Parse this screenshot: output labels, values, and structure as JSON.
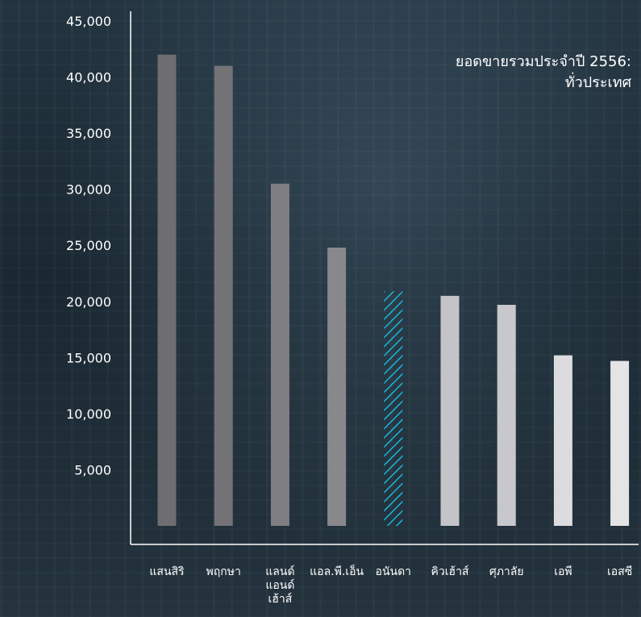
{
  "chart_data": {
    "type": "bar",
    "title": "ยอดขายรวมประจำปี 2556:\nทั่วประเทศ",
    "xlabel": "",
    "ylabel": "",
    "ylim": [
      0,
      45000
    ],
    "yticks": [
      5000,
      10000,
      15000,
      20000,
      25000,
      30000,
      35000,
      40000,
      45000
    ],
    "ytick_labels": [
      "5,000",
      "10,000",
      "15,000",
      "20,000",
      "25,000",
      "30,000",
      "35,000",
      "40,000",
      "45,000"
    ],
    "grid": false,
    "legend": "none",
    "categories": [
      "แสนสิริ",
      "พฤกษา",
      "แลนด์\nแอนด์\nเฮ้าส์",
      "แอล.พี.เอ็น",
      "อนันดา",
      "คิวเฮ้าส์",
      "ศุภาลัย",
      "เอพี",
      "เอสซี"
    ],
    "values": [
      42000,
      41000,
      30500,
      24800,
      20900,
      20500,
      19700,
      15200,
      14700
    ],
    "highlight_index": 4,
    "bar_colors": [
      "#6e6e72",
      "#737377",
      "#7f7f83",
      "#88888c",
      "hatch",
      "#c4c4c8",
      "#c8c8cc",
      "#dcdcdf",
      "#e4e4e7"
    ],
    "highlight_color": "#1cb6d6",
    "axis_color": "#ffffff"
  }
}
